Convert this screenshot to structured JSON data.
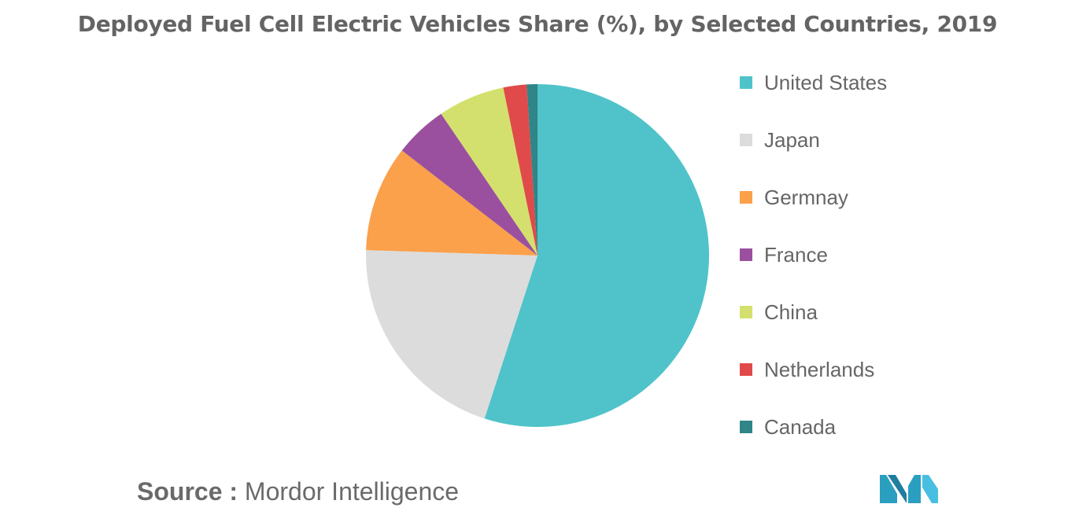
{
  "header": {
    "title": "Deployed Fuel Cell Electric Vehicles Share (%), by Selected Countries, 2019"
  },
  "chart_data": {
    "type": "pie",
    "title": "Deployed Fuel Cell Electric Vehicles Share (%), by Selected Countries, 2019",
    "slices": [
      {
        "label": "United States",
        "value": 55,
        "color": "#4fc3c9"
      },
      {
        "label": "Japan",
        "value": 20.5,
        "color": "#dcdcdc"
      },
      {
        "label": "Germnay",
        "value": 10,
        "color": "#fba04b"
      },
      {
        "label": "France",
        "value": 5,
        "color": "#9a509e"
      },
      {
        "label": "China",
        "value": 6.3,
        "color": "#d4e06e"
      },
      {
        "label": "Netherlands",
        "value": 2.2,
        "color": "#e04a4a"
      },
      {
        "label": "Canada",
        "value": 1,
        "color": "#2f8587"
      }
    ],
    "legend_position": "right"
  },
  "footer": {
    "source_prefix": "Source :",
    "source_name": "Mordor Intelligence"
  },
  "logo": {
    "icon": "mordor-intelligence-logo-icon",
    "color": "#2b9fc0"
  }
}
